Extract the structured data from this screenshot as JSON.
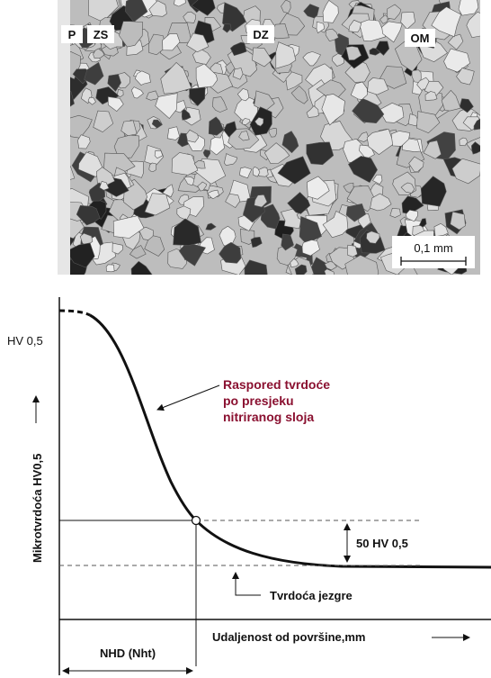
{
  "micrograph": {
    "labels": [
      "P",
      "ZS",
      "DZ",
      "OM"
    ],
    "scale_bar": "0,1 mm"
  },
  "graph": {
    "y_top_label": "HV 0,5",
    "y_axis_label": "Mikrotvrdoća HV0,5",
    "curve_label": [
      "Raspored tvrdoće",
      "po presjeku",
      "nitriranog sloja"
    ],
    "difference_label": "50 HV 0,5",
    "core_label": "Tvrdoća jezgre",
    "x_axis_label": "Udaljenost od površine,mm",
    "depth_label": "NHD (Nht)"
  }
}
